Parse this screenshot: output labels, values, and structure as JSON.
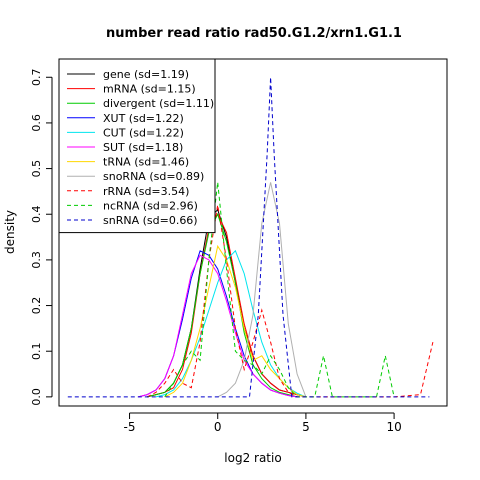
{
  "chart_data": {
    "type": "line",
    "title": "number read ratio rad50.G1.2/xrn1.G1.1",
    "xlabel": "log2 ratio",
    "ylabel": "density",
    "xlim": [
      -9,
      13
    ],
    "ylim": [
      -0.02,
      0.74
    ],
    "xticks": [
      -5,
      0,
      5,
      10
    ],
    "yticks": [
      0.0,
      0.1,
      0.2,
      0.3,
      0.4,
      0.5,
      0.6,
      0.7
    ],
    "grid": false,
    "legend_position": "top-left",
    "series": [
      {
        "name": "gene (sd=1.19)",
        "color": "#000000",
        "dash": false,
        "x": [
          -4,
          -3.5,
          -3,
          -2.5,
          -2,
          -1.5,
          -1,
          -0.5,
          0,
          0.5,
          1,
          1.5,
          2,
          2.5,
          3,
          3.5,
          4,
          4.5,
          5
        ],
        "y": [
          0,
          0.005,
          0.01,
          0.03,
          0.07,
          0.15,
          0.28,
          0.39,
          0.41,
          0.35,
          0.25,
          0.15,
          0.09,
          0.05,
          0.03,
          0.015,
          0.01,
          0.005,
          0
        ]
      },
      {
        "name": "mRNA (sd=1.15)",
        "color": "#ff0000",
        "dash": false,
        "x": [
          -4,
          -3.5,
          -3,
          -2.5,
          -2,
          -1.5,
          -1,
          -0.5,
          0,
          0.5,
          1,
          1.5,
          2,
          2.5,
          3,
          3.5,
          4,
          4.5,
          5
        ],
        "y": [
          0,
          0.005,
          0.01,
          0.02,
          0.06,
          0.14,
          0.27,
          0.37,
          0.4,
          0.36,
          0.26,
          0.16,
          0.09,
          0.05,
          0.03,
          0.015,
          0.01,
          0.005,
          0
        ]
      },
      {
        "name": "divergent (sd=1.11)",
        "color": "#00cc00",
        "dash": false,
        "x": [
          -4,
          -3.5,
          -3,
          -2.5,
          -2,
          -1.5,
          -1,
          -0.5,
          0,
          0.5,
          1,
          1.5,
          2,
          2.5,
          3,
          3.5,
          4,
          4.5
        ],
        "y": [
          0,
          0.005,
          0.01,
          0.03,
          0.07,
          0.15,
          0.27,
          0.36,
          0.4,
          0.34,
          0.25,
          0.14,
          0.07,
          0.04,
          0.02,
          0.01,
          0.005,
          0
        ]
      },
      {
        "name": "XUT (sd=1.22)",
        "color": "#0000ff",
        "dash": false,
        "x": [
          -4.5,
          -4,
          -3.5,
          -3,
          -2.5,
          -2,
          -1.5,
          -1,
          -0.5,
          0,
          0.5,
          1,
          1.5,
          2,
          2.5,
          3,
          3.5,
          4,
          4.5
        ],
        "y": [
          0,
          0.005,
          0.015,
          0.04,
          0.09,
          0.17,
          0.26,
          0.32,
          0.31,
          0.28,
          0.22,
          0.15,
          0.09,
          0.05,
          0.03,
          0.015,
          0.008,
          0.003,
          0
        ]
      },
      {
        "name": "CUT (sd=1.22)",
        "color": "#00e5ee",
        "dash": false,
        "x": [
          -3.5,
          -3,
          -2.5,
          -2,
          -1.5,
          -1,
          -0.5,
          0,
          0.5,
          1,
          1.5,
          2,
          2.5,
          3,
          3.5,
          4,
          4.5,
          5
        ],
        "y": [
          0,
          0.005,
          0.015,
          0.04,
          0.08,
          0.13,
          0.19,
          0.25,
          0.3,
          0.32,
          0.27,
          0.19,
          0.12,
          0.07,
          0.04,
          0.02,
          0.008,
          0
        ]
      },
      {
        "name": "SUT (sd=1.18)",
        "color": "#ff00ff",
        "dash": false,
        "x": [
          -4.5,
          -4,
          -3.5,
          -3,
          -2.5,
          -2,
          -1.5,
          -1,
          -0.5,
          0,
          0.5,
          1,
          1.5,
          2,
          2.5,
          3,
          3.5,
          4,
          4.5
        ],
        "y": [
          0,
          0.005,
          0.015,
          0.04,
          0.09,
          0.18,
          0.27,
          0.31,
          0.3,
          0.27,
          0.21,
          0.14,
          0.08,
          0.05,
          0.03,
          0.015,
          0.008,
          0.003,
          0
        ]
      },
      {
        "name": "tRNA (sd=1.46)",
        "color": "#ffd700",
        "dash": false,
        "x": [
          -3,
          -2.5,
          -2,
          -1.5,
          -1,
          -0.5,
          0,
          0.5,
          1,
          1.5,
          2,
          2.5,
          3,
          3.5,
          4,
          4.5,
          5
        ],
        "y": [
          0,
          0.01,
          0.03,
          0.08,
          0.15,
          0.24,
          0.33,
          0.3,
          0.24,
          0.15,
          0.08,
          0.09,
          0.06,
          0.04,
          0.02,
          0.005,
          0
        ]
      },
      {
        "name": "snoRNA (sd=0.89)",
        "color": "#b0b0b0",
        "dash": false,
        "x": [
          0,
          0.5,
          1,
          1.5,
          2,
          2.5,
          3,
          3.5,
          4,
          4.5,
          5
        ],
        "y": [
          0,
          0.01,
          0.03,
          0.08,
          0.18,
          0.38,
          0.47,
          0.38,
          0.16,
          0.05,
          0
        ]
      },
      {
        "name": "rRNA (sd=3.54)",
        "color": "#ff0000",
        "dash": true,
        "x": [
          -4,
          -3.5,
          -3,
          -2.5,
          -2,
          -1.5,
          -1,
          -0.5,
          0,
          0.5,
          1,
          1.5,
          2,
          2.5,
          3,
          3.5,
          4,
          4.5,
          5,
          6,
          8,
          10,
          11.5,
          12.2
        ],
        "y": [
          0,
          0.01,
          0.03,
          0.06,
          0.03,
          0.02,
          0.12,
          0.3,
          0.42,
          0.3,
          0.15,
          0.06,
          0.12,
          0.19,
          0.12,
          0.04,
          0.01,
          0,
          0,
          0,
          0,
          0,
          0.005,
          0.12
        ]
      },
      {
        "name": "ncRNA (sd=2.96)",
        "color": "#00cc00",
        "dash": true,
        "x": [
          -3,
          -2.5,
          -2,
          -1.5,
          -1,
          -0.5,
          0,
          0.5,
          1,
          1.5,
          2,
          2.5,
          3,
          3.5,
          4,
          4.5,
          5,
          5.5,
          6,
          6.5,
          9,
          9.5,
          10
        ],
        "y": [
          0,
          0.03,
          0.07,
          0.1,
          0.08,
          0.3,
          0.47,
          0.28,
          0.1,
          0.08,
          0.07,
          0.05,
          0.09,
          0.06,
          0.02,
          0,
          0,
          0,
          0.09,
          0,
          0,
          0.09,
          0
        ]
      },
      {
        "name": "snRNA (sd=0.66)",
        "color": "#0000cc",
        "dash": true,
        "x": [
          -8.5,
          -4,
          1.8,
          2.3,
          2.8,
          3.0,
          3.2,
          3.7,
          4.2,
          12
        ],
        "y": [
          0,
          0,
          0,
          0.18,
          0.53,
          0.7,
          0.53,
          0.18,
          0,
          0
        ]
      }
    ]
  }
}
